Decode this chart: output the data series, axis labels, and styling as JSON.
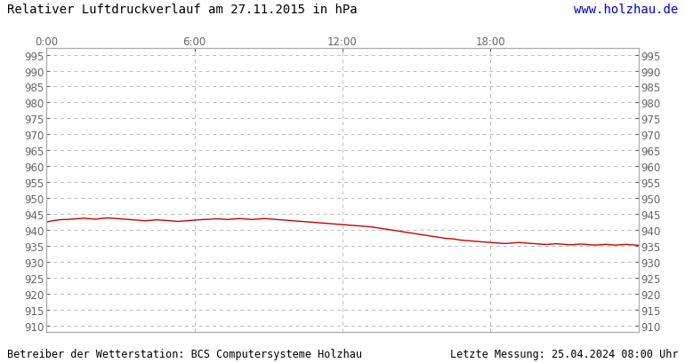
{
  "title": "Relativer Luftdruckverlauf am 27.11.2015 in hPa",
  "url_text": "www.holzhau.de",
  "url_color": "#0000cc",
  "footer_left": "Betreiber der Wetterstation: BCS Computersysteme Holzhau",
  "footer_right": "Letzte Messung: 25.04.2024 08:00 Uhr",
  "background_color": "#ffffff",
  "plot_bg_color": "#ffffff",
  "line_color": "#cc0000",
  "line_width": 1.0,
  "ylim": [
    908,
    997
  ],
  "yticks": [
    910,
    915,
    920,
    925,
    930,
    935,
    940,
    945,
    950,
    955,
    960,
    965,
    970,
    975,
    980,
    985,
    990,
    995
  ],
  "xlim": [
    0,
    1440
  ],
  "xtick_positions": [
    0,
    360,
    720,
    1080,
    1440
  ],
  "xtick_labels": [
    "0:00",
    "6:00",
    "12:00",
    "18:00",
    ""
  ],
  "grid_color": "#bbbbbb",
  "grid_style": "--",
  "title_fontsize": 10,
  "footer_fontsize": 8.5,
  "tick_fontsize": 8.5,
  "pressure_data": [
    [
      0,
      942.5
    ],
    [
      10,
      942.8
    ],
    [
      20,
      943.0
    ],
    [
      30,
      943.2
    ],
    [
      40,
      943.3
    ],
    [
      50,
      943.3
    ],
    [
      60,
      943.4
    ],
    [
      70,
      943.5
    ],
    [
      80,
      943.6
    ],
    [
      90,
      943.7
    ],
    [
      100,
      943.6
    ],
    [
      110,
      943.5
    ],
    [
      120,
      943.4
    ],
    [
      130,
      943.6
    ],
    [
      140,
      943.7
    ],
    [
      150,
      943.8
    ],
    [
      160,
      943.7
    ],
    [
      170,
      943.6
    ],
    [
      180,
      943.5
    ],
    [
      190,
      943.4
    ],
    [
      200,
      943.3
    ],
    [
      210,
      943.2
    ],
    [
      220,
      943.1
    ],
    [
      230,
      943.0
    ],
    [
      240,
      942.9
    ],
    [
      250,
      943.0
    ],
    [
      260,
      943.1
    ],
    [
      270,
      943.2
    ],
    [
      280,
      943.1
    ],
    [
      290,
      943.0
    ],
    [
      300,
      942.9
    ],
    [
      310,
      942.8
    ],
    [
      320,
      942.7
    ],
    [
      330,
      942.8
    ],
    [
      340,
      942.9
    ],
    [
      350,
      943.0
    ],
    [
      360,
      943.1
    ],
    [
      370,
      943.2
    ],
    [
      380,
      943.3
    ],
    [
      390,
      943.3
    ],
    [
      400,
      943.4
    ],
    [
      410,
      943.5
    ],
    [
      420,
      943.5
    ],
    [
      430,
      943.4
    ],
    [
      440,
      943.3
    ],
    [
      450,
      943.4
    ],
    [
      460,
      943.5
    ],
    [
      470,
      943.6
    ],
    [
      480,
      943.5
    ],
    [
      490,
      943.4
    ],
    [
      500,
      943.3
    ],
    [
      510,
      943.4
    ],
    [
      520,
      943.5
    ],
    [
      530,
      943.6
    ],
    [
      540,
      943.5
    ],
    [
      550,
      943.4
    ],
    [
      560,
      943.3
    ],
    [
      570,
      943.2
    ],
    [
      580,
      943.1
    ],
    [
      590,
      943.0
    ],
    [
      600,
      942.9
    ],
    [
      610,
      942.8
    ],
    [
      620,
      942.7
    ],
    [
      630,
      942.6
    ],
    [
      640,
      942.5
    ],
    [
      650,
      942.4
    ],
    [
      660,
      942.3
    ],
    [
      670,
      942.2
    ],
    [
      680,
      942.1
    ],
    [
      690,
      942.0
    ],
    [
      700,
      941.9
    ],
    [
      710,
      941.8
    ],
    [
      720,
      941.7
    ],
    [
      730,
      941.6
    ],
    [
      740,
      941.5
    ],
    [
      750,
      941.4
    ],
    [
      760,
      941.3
    ],
    [
      770,
      941.2
    ],
    [
      780,
      941.1
    ],
    [
      790,
      941.0
    ],
    [
      800,
      940.8
    ],
    [
      810,
      940.6
    ],
    [
      820,
      940.4
    ],
    [
      830,
      940.2
    ],
    [
      840,
      940.0
    ],
    [
      850,
      939.8
    ],
    [
      860,
      939.6
    ],
    [
      870,
      939.4
    ],
    [
      880,
      939.2
    ],
    [
      890,
      939.0
    ],
    [
      900,
      938.8
    ],
    [
      910,
      938.6
    ],
    [
      920,
      938.4
    ],
    [
      930,
      938.2
    ],
    [
      940,
      938.0
    ],
    [
      950,
      937.8
    ],
    [
      960,
      937.6
    ],
    [
      970,
      937.4
    ],
    [
      980,
      937.3
    ],
    [
      990,
      937.2
    ],
    [
      1000,
      937.0
    ],
    [
      1010,
      936.8
    ],
    [
      1020,
      936.7
    ],
    [
      1030,
      936.6
    ],
    [
      1040,
      936.5
    ],
    [
      1050,
      936.4
    ],
    [
      1060,
      936.3
    ],
    [
      1070,
      936.2
    ],
    [
      1080,
      936.1
    ],
    [
      1090,
      936.0
    ],
    [
      1100,
      935.9
    ],
    [
      1110,
      935.8
    ],
    [
      1120,
      935.8
    ],
    [
      1130,
      935.9
    ],
    [
      1140,
      936.0
    ],
    [
      1150,
      936.1
    ],
    [
      1160,
      936.0
    ],
    [
      1170,
      935.9
    ],
    [
      1180,
      935.8
    ],
    [
      1190,
      935.7
    ],
    [
      1200,
      935.6
    ],
    [
      1210,
      935.5
    ],
    [
      1220,
      935.5
    ],
    [
      1230,
      935.6
    ],
    [
      1240,
      935.7
    ],
    [
      1250,
      935.6
    ],
    [
      1260,
      935.5
    ],
    [
      1270,
      935.4
    ],
    [
      1280,
      935.4
    ],
    [
      1290,
      935.5
    ],
    [
      1300,
      935.6
    ],
    [
      1310,
      935.5
    ],
    [
      1320,
      935.4
    ],
    [
      1330,
      935.3
    ],
    [
      1340,
      935.3
    ],
    [
      1350,
      935.4
    ],
    [
      1360,
      935.5
    ],
    [
      1370,
      935.4
    ],
    [
      1380,
      935.3
    ],
    [
      1390,
      935.3
    ],
    [
      1400,
      935.4
    ],
    [
      1410,
      935.5
    ],
    [
      1420,
      935.4
    ],
    [
      1430,
      935.3
    ],
    [
      1440,
      935.2
    ]
  ]
}
